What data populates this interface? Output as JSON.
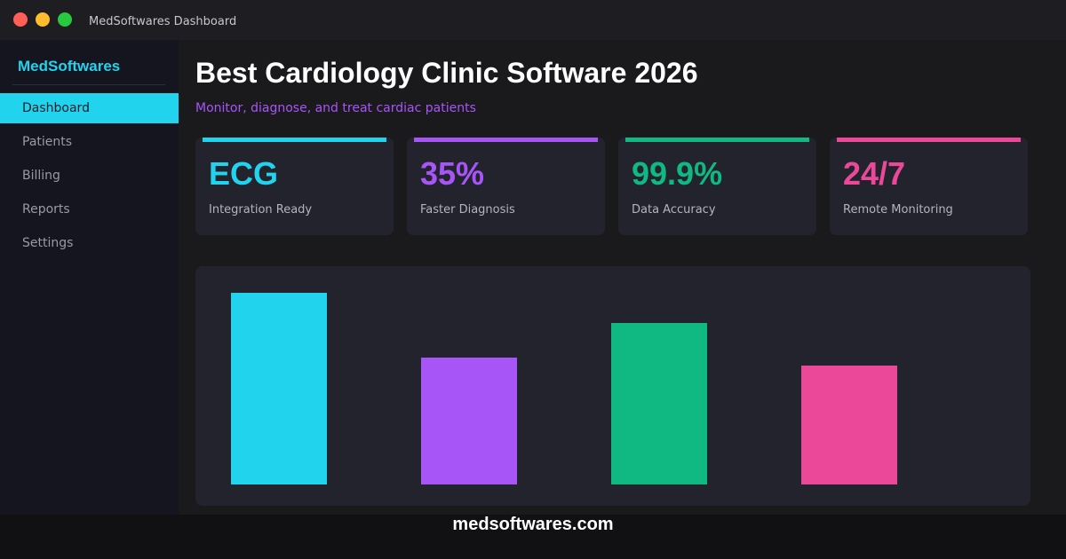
{
  "window_title": "MedSoftwares Dashboard",
  "sidebar": {
    "brand": "MedSoftwares",
    "nav": [
      "Dashboard",
      "Patients",
      "Billing",
      "Reports",
      "Settings"
    ]
  },
  "header": {
    "title": "Best Cardiology Clinic Software 2026",
    "subtitle": "Monitor, diagnose, and treat cardiac patients"
  },
  "cards": [
    {
      "value": "ECG",
      "label": "Integration Ready",
      "color": "#22d3ee"
    },
    {
      "value": "35%",
      "label": "Faster Diagnosis",
      "color": "#a855f7"
    },
    {
      "value": "99.9%",
      "label": "Data Accuracy",
      "color": "#10b981"
    },
    {
      "value": "24/7",
      "label": "Remote Monitoring",
      "color": "#ec4899"
    }
  ],
  "chart_data": {
    "type": "bar",
    "values": [
      216,
      143,
      182,
      134
    ],
    "colors": [
      "#22d3ee",
      "#a855f7",
      "#10b981",
      "#ec4899"
    ],
    "ylim": [
      0,
      216
    ]
  },
  "footer": "medsoftwares.com"
}
